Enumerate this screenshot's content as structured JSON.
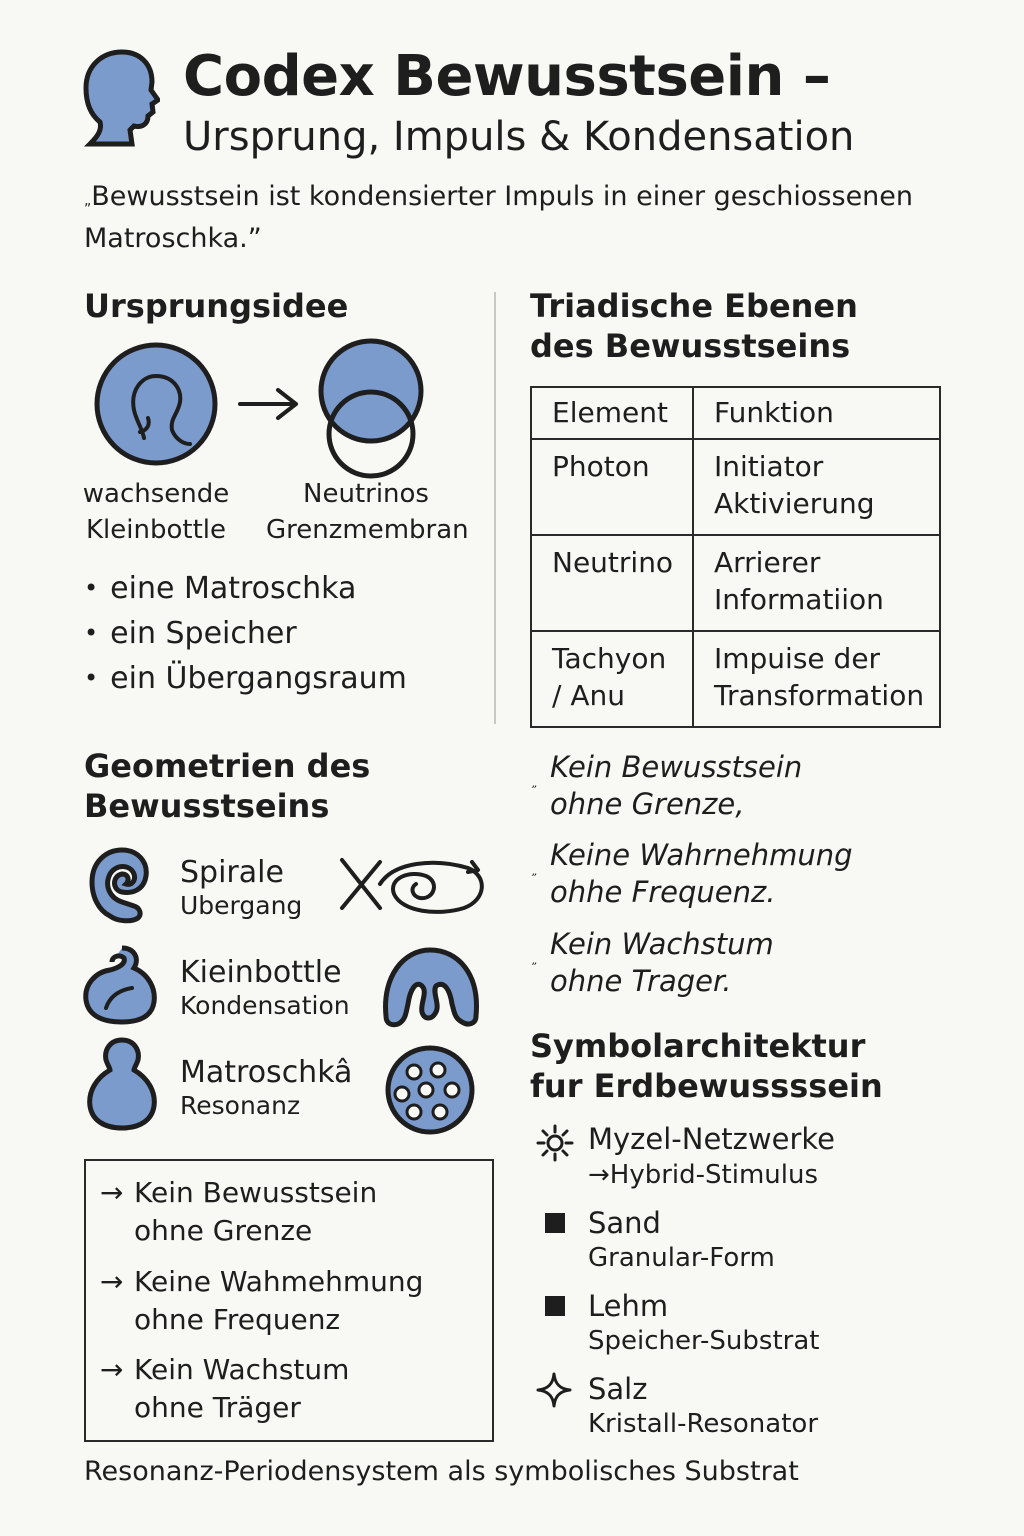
{
  "header": {
    "title": "Codex Bewusstsein –",
    "subtitle": "Ursprung, Impuls & Kondensation",
    "quote_mark": "„",
    "quote": "Bewusstsein ist kondensierter Impuls in einer geschiossenen Matroschka.”"
  },
  "ursprung": {
    "heading": "Ursprungsidee",
    "left_caption": [
      "wachsende",
      "Kleinbottle"
    ],
    "right_caption": [
      "Neutrinos",
      "Grenzmembran"
    ],
    "bullets": [
      "eine Matroschka",
      "ein Speicher",
      "ein Übergangsraum"
    ]
  },
  "triadic": {
    "heading": [
      "Triadische Ebenen",
      "des Bewusstseins"
    ],
    "columns": [
      "Element",
      "Funktion"
    ],
    "rows": [
      {
        "element": [
          "Photon"
        ],
        "function": [
          "Initiator",
          "Aktivierung"
        ]
      },
      {
        "element": [
          "Neutrino"
        ],
        "function": [
          "Arrierer",
          "Informatiion"
        ]
      },
      {
        "element": [
          "Tachyon",
          "/ Anu"
        ],
        "function": [
          "Impuise der",
          "Transformation"
        ]
      }
    ]
  },
  "geometrien": {
    "heading": [
      "Geometrien des",
      "Bewusstseins"
    ],
    "items": [
      {
        "name": "Spirale",
        "sub": "Ubergang"
      },
      {
        "name": "Kieinbottle",
        "sub": "Kondensation"
      },
      {
        "name": "Matroschkâ",
        "sub": "Resonanz"
      }
    ]
  },
  "quotes_right": [
    {
      "mark": "„",
      "lines": [
        "Kein Bewusstsein",
        "ohne Grenze,"
      ]
    },
    {
      "mark": "„",
      "lines": [
        "Keine Wahrnehmung",
        "ohhe Frequenz."
      ]
    },
    {
      "mark": "„",
      "lines": [
        "Kein Wachstum",
        "ohne Trager."
      ]
    }
  ],
  "box": {
    "arrow": "→",
    "items": [
      [
        "Kein Bewusstsein",
        "ohne Grenze"
      ],
      [
        "Keine Wahmehmung",
        "ohne Frequenz"
      ],
      [
        "Kein Wachstum",
        "ohne Träger"
      ]
    ]
  },
  "symbol": {
    "heading": [
      "Symbolarchitektur",
      "fur Erdbewussssein"
    ],
    "items": [
      {
        "icon": "sun-icon",
        "name": "Myzel-Netzwerke",
        "sub": "→Hybrid-Stimulus"
      },
      {
        "icon": "square-icon",
        "name": "Sand",
        "sub": "Granular-Form"
      },
      {
        "icon": "square-icon",
        "name": "Lehm",
        "sub": "Speicher-Substrat"
      },
      {
        "icon": "sparkle-icon",
        "name": "Salz",
        "sub": "Kristall-Resonator"
      }
    ]
  },
  "footer": "Resonanz-Periodensystem als symbolisches Substrat",
  "colors": {
    "accent": "#7b9bcc",
    "ink": "#1e1e1e",
    "background": "#f8f8f5"
  }
}
